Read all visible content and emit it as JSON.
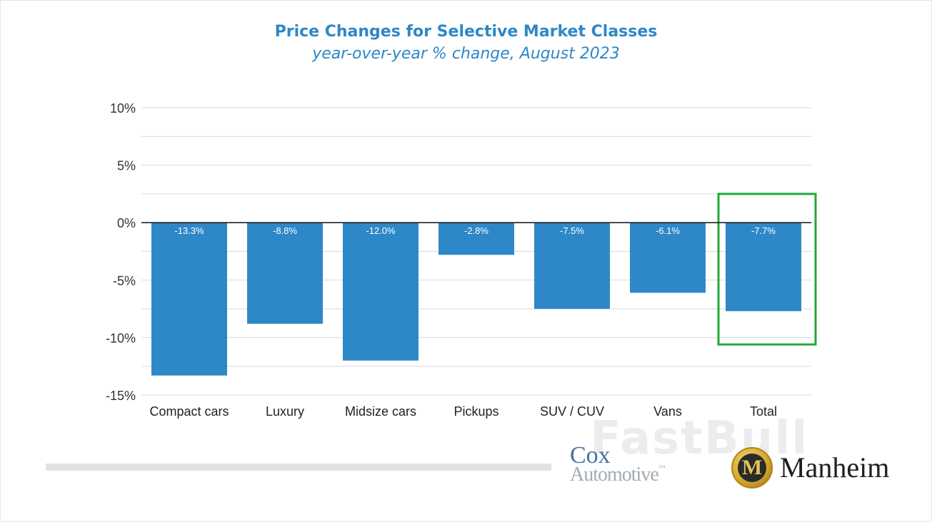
{
  "header": {
    "title": "Price Changes for Selective Market Classes",
    "subtitle": "year-over-year % change, August 2023"
  },
  "chart_data": {
    "type": "bar",
    "title": "Price Changes for Selective Market Classes",
    "subtitle": "year-over-year % change, August 2023",
    "categories": [
      "Compact cars",
      "Luxury",
      "Midsize cars",
      "Pickups",
      "SUV / CUV",
      "Vans",
      "Total"
    ],
    "values": [
      -13.3,
      -8.8,
      -12.0,
      -2.8,
      -7.5,
      -6.1,
      -7.7
    ],
    "data_labels": [
      "-13.3%",
      "-8.8%",
      "-12.0%",
      "-2.8%",
      "-7.5%",
      "-6.1%",
      "-7.7%"
    ],
    "ylim": [
      -15,
      10
    ],
    "y_ticks": [
      10,
      5,
      0,
      -5,
      -10,
      -15
    ],
    "y_tick_labels": [
      "10%",
      "5%",
      "0%",
      "-5%",
      "-10%",
      "-15%"
    ],
    "grid": true,
    "xlabel": "",
    "ylabel": "",
    "bar_color": "#2e88c8",
    "highlight_category": "Total",
    "highlight_color": "#22a83a"
  },
  "logos": {
    "cox_top": "Cox",
    "cox_bottom": "Automotive",
    "trademark": "™",
    "manheim": "Manheim",
    "manheim_badge": "M"
  },
  "watermark": "FastBull"
}
